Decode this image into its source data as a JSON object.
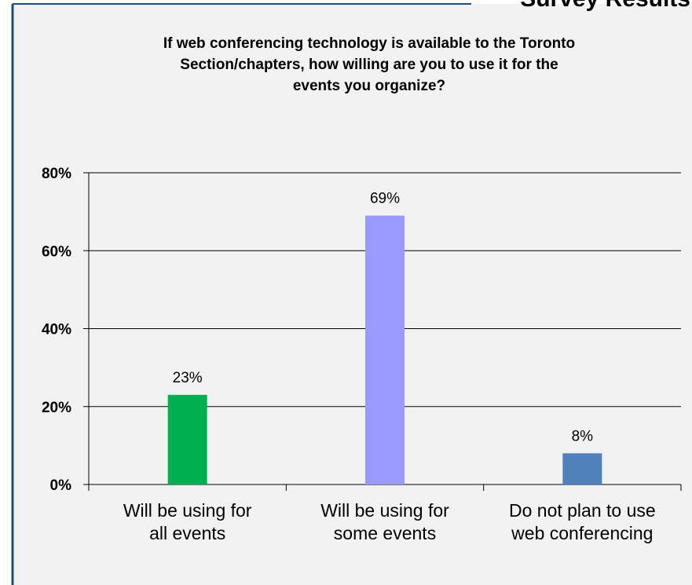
{
  "header": {
    "title": "Survey Results"
  },
  "chart_data": {
    "type": "bar",
    "title": [
      "If web conferencing technology is available to the Toronto",
      "Section/chapters, how willing are you to use it for the",
      "events you organize?"
    ],
    "categories": [
      [
        "Will be using for",
        "all events"
      ],
      [
        "Will be using for",
        "some events"
      ],
      [
        "Do not plan to use",
        "web conferencing"
      ]
    ],
    "values": [
      23,
      69,
      8
    ],
    "value_labels": [
      "23%",
      "69%",
      "8%"
    ],
    "colors": [
      "#00b050",
      "#9999ff",
      "#4f81bd"
    ],
    "ylim": [
      0,
      80
    ],
    "yticks": [
      {
        "value": 0,
        "label": "0%"
      },
      {
        "value": 20,
        "label": "20%"
      },
      {
        "value": 40,
        "label": "40%"
      },
      {
        "value": 60,
        "label": "60%"
      },
      {
        "value": 80,
        "label": "80%"
      }
    ],
    "grid": true
  }
}
